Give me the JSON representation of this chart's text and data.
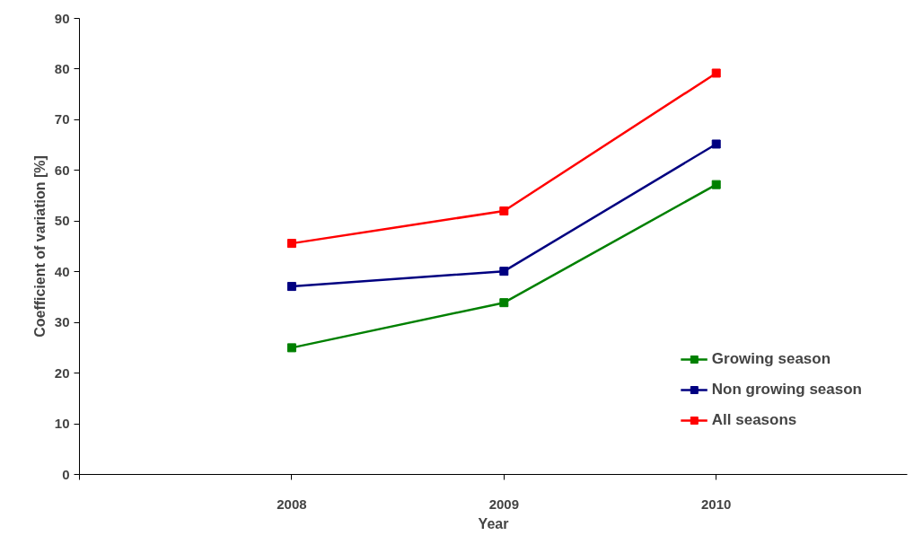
{
  "chart_data": {
    "type": "line",
    "xlabel": "Year",
    "ylabel": "Coefficient of variation [%]",
    "x": [
      2008,
      2009,
      2010
    ],
    "series": [
      {
        "name": "Growing season",
        "color": "#008000",
        "values": [
          25.0,
          33.9,
          57.2
        ]
      },
      {
        "name": "Non growing season",
        "color": "#000080",
        "values": [
          37.1,
          40.1,
          65.2
        ]
      },
      {
        "name": "All seasons",
        "color": "#ff0000",
        "values": [
          45.6,
          52.0,
          79.2
        ]
      }
    ],
    "xlim": [
      2007,
      2010.9
    ],
    "xticks": [
      {
        "value": 2007,
        "label": null
      },
      2008,
      2009,
      2010
    ],
    "ylim": [
      0,
      90
    ],
    "yticks": [
      0,
      10,
      20,
      30,
      40,
      50,
      60,
      70,
      80,
      90
    ],
    "grid": false,
    "legend": "bottom right",
    "marker": "square",
    "line_style": "solid"
  }
}
